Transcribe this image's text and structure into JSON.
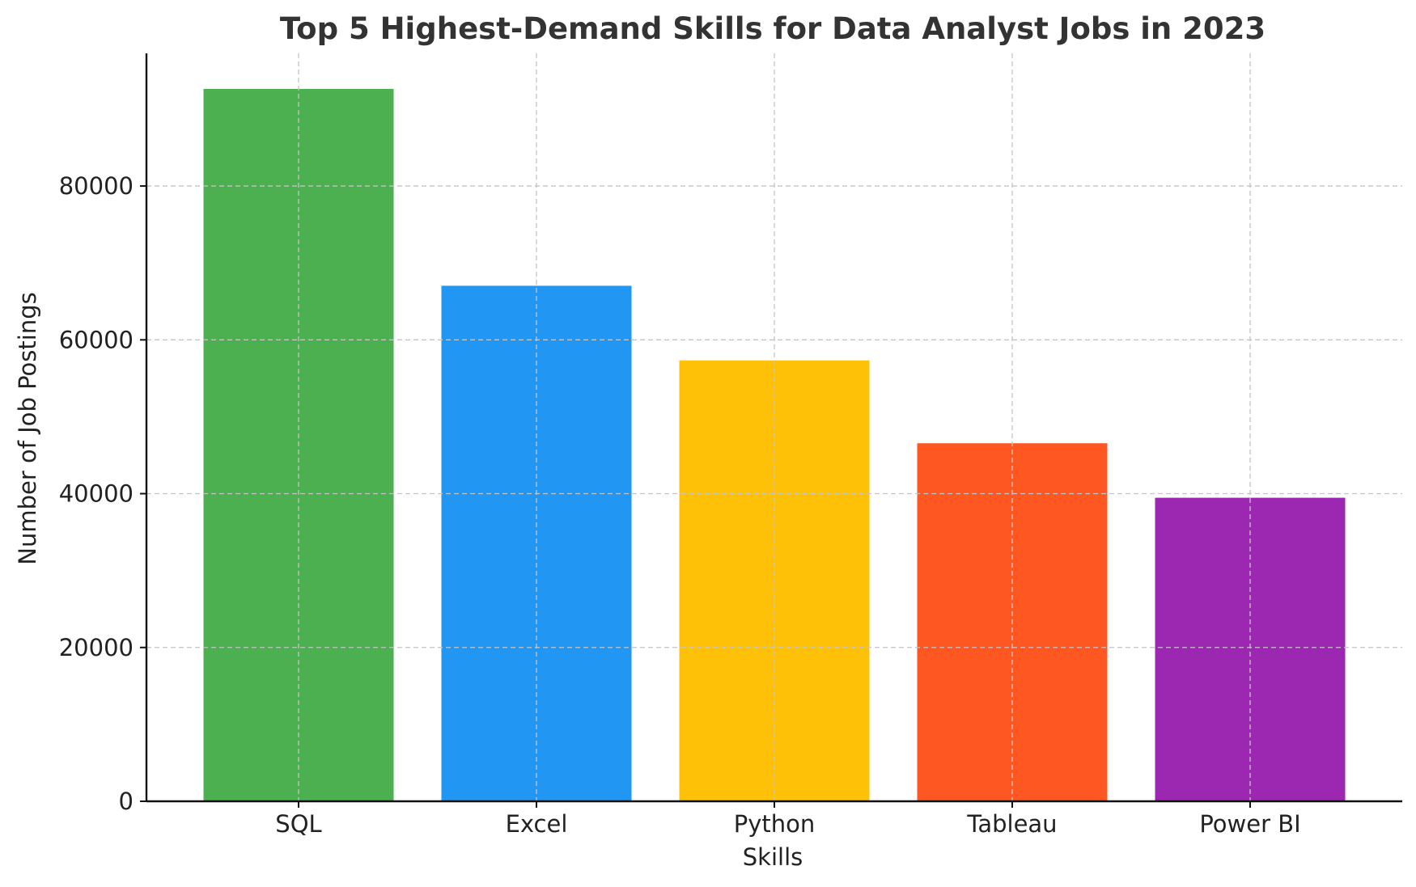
{
  "chart_data": {
    "type": "bar",
    "title": "Top 5 Highest-Demand Skills for Data Analyst Jobs in 2023",
    "xlabel": "Skills",
    "ylabel": "Number of Job Postings",
    "categories": [
      "SQL",
      "Excel",
      "Python",
      "Tableau",
      "Power BI"
    ],
    "values": [
      92628,
      67031,
      57326,
      46554,
      39468
    ],
    "colors": [
      "#4caf50",
      "#2196f3",
      "#ffc107",
      "#ff5722",
      "#9c27b0"
    ],
    "ylim": [
      0,
      97250
    ],
    "yticks": [
      0,
      20000,
      40000,
      60000,
      80000
    ],
    "grid": true,
    "legend": "none"
  }
}
